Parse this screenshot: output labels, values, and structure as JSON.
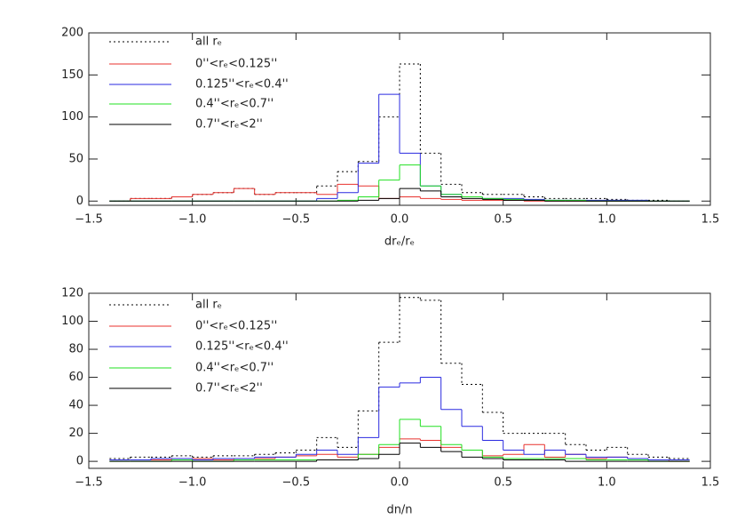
{
  "chart_data": [
    {
      "type": "histogram",
      "xlabel": "drₑ/rₑ",
      "bins": [
        -1.4,
        -1.3,
        -1.2,
        -1.1,
        -1.0,
        -0.9,
        -0.8,
        -0.7,
        -0.6,
        -0.5,
        -0.4,
        -0.3,
        -0.2,
        -0.1,
        0.0,
        0.1,
        0.2,
        0.3,
        0.4,
        0.5,
        0.6,
        0.7,
        0.8,
        0.9,
        1.0,
        1.1,
        1.2,
        1.3,
        1.4
      ],
      "series": [
        {
          "name": "all rₑ",
          "color": "#000000",
          "dash": "dotted",
          "values": [
            0,
            3,
            3,
            5,
            8,
            10,
            15,
            8,
            10,
            10,
            18,
            35,
            47,
            100,
            163,
            57,
            20,
            10,
            8,
            8,
            5,
            3,
            3,
            3,
            2,
            1,
            1,
            0
          ]
        },
        {
          "name": "0''<rₑ<0.125''",
          "color": "#e8322e",
          "values": [
            0,
            3,
            3,
            5,
            8,
            10,
            15,
            8,
            10,
            10,
            8,
            20,
            18,
            3,
            5,
            3,
            2,
            1,
            1,
            1,
            0,
            0,
            0,
            0,
            0,
            0,
            0,
            0
          ]
        },
        {
          "name": "0.125''<rₑ<0.4''",
          "color": "#2a2ae0",
          "values": [
            0,
            0,
            0,
            0,
            0,
            0,
            0,
            0,
            0,
            0,
            3,
            10,
            45,
            127,
            57,
            18,
            8,
            5,
            3,
            3,
            2,
            1,
            1,
            1,
            1,
            1,
            0,
            0
          ]
        },
        {
          "name": "0.4''<rₑ<0.7''",
          "color": "#22e022",
          "values": [
            0,
            0,
            0,
            0,
            0,
            0,
            0,
            0,
            0,
            0,
            0,
            1,
            5,
            25,
            43,
            18,
            8,
            5,
            3,
            2,
            1,
            1,
            1,
            0,
            0,
            0,
            0,
            0
          ]
        },
        {
          "name": "0.7''<rₑ<2''",
          "color": "#000000",
          "values": [
            0,
            0,
            0,
            0,
            0,
            0,
            0,
            0,
            0,
            0,
            0,
            0,
            1,
            3,
            15,
            12,
            5,
            3,
            2,
            1,
            1,
            0,
            0,
            0,
            0,
            0,
            0,
            0
          ]
        }
      ],
      "xlim": [
        -1.5,
        1.5
      ],
      "ylim": [
        -5,
        200
      ],
      "xticks": [
        {
          "value": -1.5,
          "label": "−1.5"
        },
        {
          "value": -1.0,
          "label": "−1.0"
        },
        {
          "value": -0.5,
          "label": "−0.5"
        },
        {
          "value": 0,
          "label": "0.0"
        },
        {
          "value": 0.5,
          "label": "0.5"
        },
        {
          "value": 1.0,
          "label": "1.0"
        },
        {
          "value": 1.5,
          "label": "1.5"
        }
      ],
      "yticks": [
        0,
        50,
        100,
        150,
        200
      ]
    },
    {
      "type": "histogram",
      "xlabel": "dn/n",
      "bins": [
        -1.4,
        -1.3,
        -1.2,
        -1.1,
        -1.0,
        -0.9,
        -0.8,
        -0.7,
        -0.6,
        -0.5,
        -0.4,
        -0.3,
        -0.2,
        -0.1,
        0.0,
        0.1,
        0.2,
        0.3,
        0.4,
        0.5,
        0.6,
        0.7,
        0.8,
        0.9,
        1.0,
        1.1,
        1.2,
        1.3,
        1.4
      ],
      "series": [
        {
          "name": "all rₑ",
          "color": "#000000",
          "dash": "dotted",
          "values": [
            2,
            3,
            3,
            4,
            3,
            4,
            4,
            5,
            6,
            8,
            17,
            10,
            36,
            85,
            117,
            115,
            70,
            55,
            35,
            20,
            20,
            20,
            12,
            8,
            10,
            5,
            3,
            2
          ]
        },
        {
          "name": "0''<rₑ<0.125''",
          "color": "#e8322e",
          "values": [
            1,
            1,
            1,
            2,
            2,
            1,
            2,
            2,
            3,
            4,
            5,
            3,
            5,
            10,
            16,
            15,
            10,
            8,
            4,
            5,
            12,
            3,
            5,
            2,
            3,
            2,
            1,
            0
          ]
        },
        {
          "name": "0.125''<rₑ<0.4''",
          "color": "#2a2ae0",
          "values": [
            1,
            1,
            2,
            2,
            1,
            2,
            2,
            3,
            3,
            5,
            8,
            5,
            17,
            53,
            56,
            60,
            37,
            25,
            15,
            8,
            5,
            8,
            5,
            3,
            3,
            2,
            1,
            1
          ]
        },
        {
          "name": "0.4''<rₑ<0.7''",
          "color": "#22e022",
          "values": [
            0,
            0,
            0,
            1,
            0,
            0,
            1,
            1,
            1,
            1,
            1,
            1,
            5,
            12,
            30,
            25,
            12,
            8,
            3,
            2,
            2,
            2,
            2,
            1,
            1,
            1,
            0,
            0
          ]
        },
        {
          "name": "0.7''<rₑ<2''",
          "color": "#000000",
          "values": [
            0,
            0,
            0,
            0,
            0,
            0,
            0,
            0,
            0,
            0,
            1,
            1,
            2,
            5,
            13,
            10,
            7,
            3,
            2,
            1,
            1,
            1,
            0,
            0,
            0,
            0,
            0,
            0
          ]
        }
      ],
      "xlim": [
        -1.5,
        1.5
      ],
      "ylim": [
        -5,
        120
      ],
      "xticks": [
        {
          "value": -1.5,
          "label": "−1.5"
        },
        {
          "value": -1.0,
          "label": "−1.0"
        },
        {
          "value": -0.5,
          "label": "−0.5"
        },
        {
          "value": 0,
          "label": "0.0"
        },
        {
          "value": 0.5,
          "label": "0.5"
        },
        {
          "value": 1.0,
          "label": "1.0"
        },
        {
          "value": 1.5,
          "label": "1.5"
        }
      ],
      "yticks": [
        0,
        20,
        40,
        60,
        80,
        100,
        120
      ]
    }
  ]
}
